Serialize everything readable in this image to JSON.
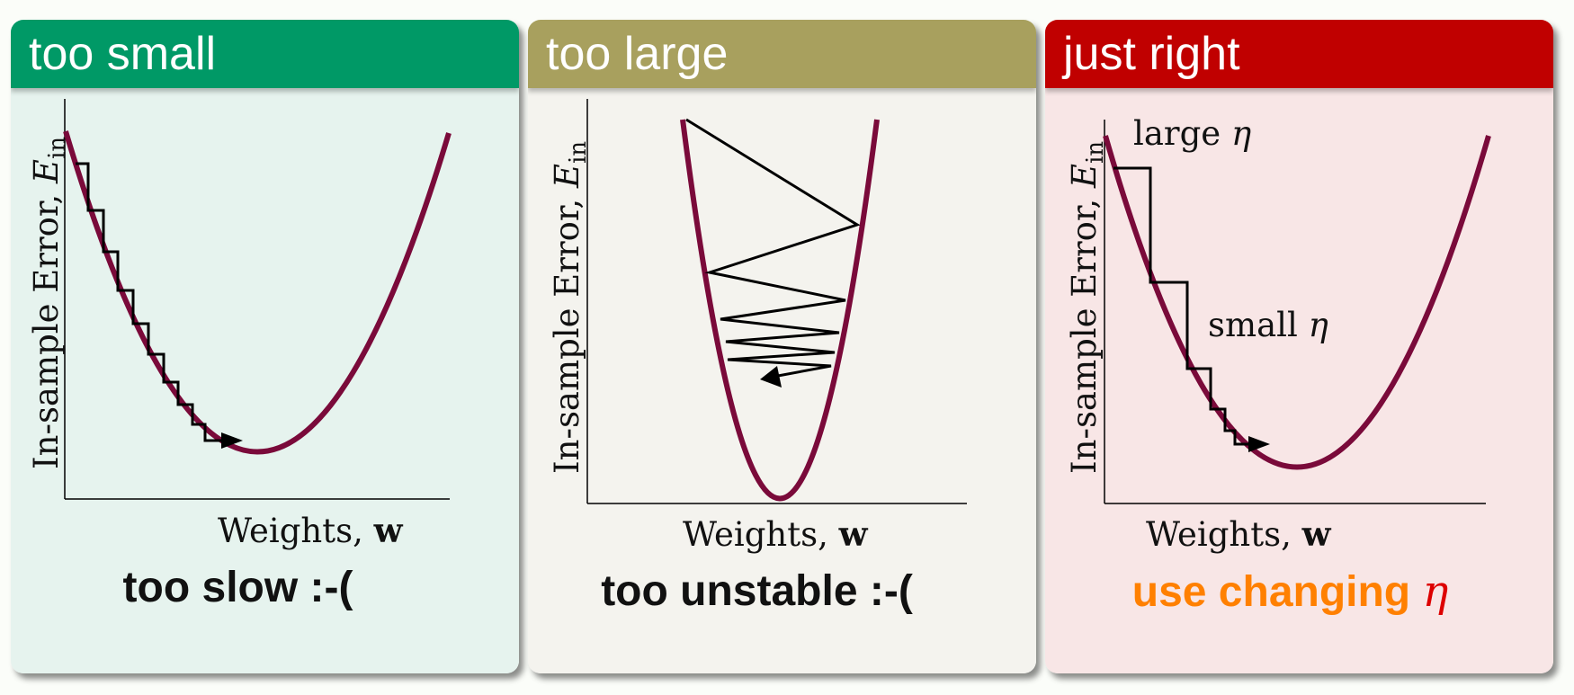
{
  "panels": [
    {
      "title": "too small",
      "header_color": "#009966",
      "body_color": "#e6f3ee",
      "y_label": "In-sample Error, ",
      "y_label_var": "E",
      "y_label_sub": "in",
      "x_label": "Weights, ",
      "x_label_bold": "w",
      "caption": "too slow :-("
    },
    {
      "title": "too large",
      "header_color": "#a8a05e",
      "body_color": "#f4f3ee",
      "y_label": "In-sample Error, ",
      "y_label_var": "E",
      "y_label_sub": "in",
      "x_label": "Weights, ",
      "x_label_bold": "w",
      "caption": "too unstable :-("
    },
    {
      "title": "just right",
      "header_color": "#c00000",
      "body_color": "#f8e6e6",
      "y_label": "In-sample Error, ",
      "y_label_var": "E",
      "y_label_sub": "in",
      "x_label": "Weights, ",
      "x_label_bold": "w",
      "caption": "use changing ",
      "caption_eta": "η",
      "caption_color": "#ff8000",
      "eta_color": "#dd0000",
      "large_eta_label": "large ",
      "small_eta_label": "small ",
      "eta_symbol": "η"
    }
  ],
  "colors": {
    "curve": "#7a0a3a",
    "path": "#000000",
    "axis": "#000000"
  }
}
